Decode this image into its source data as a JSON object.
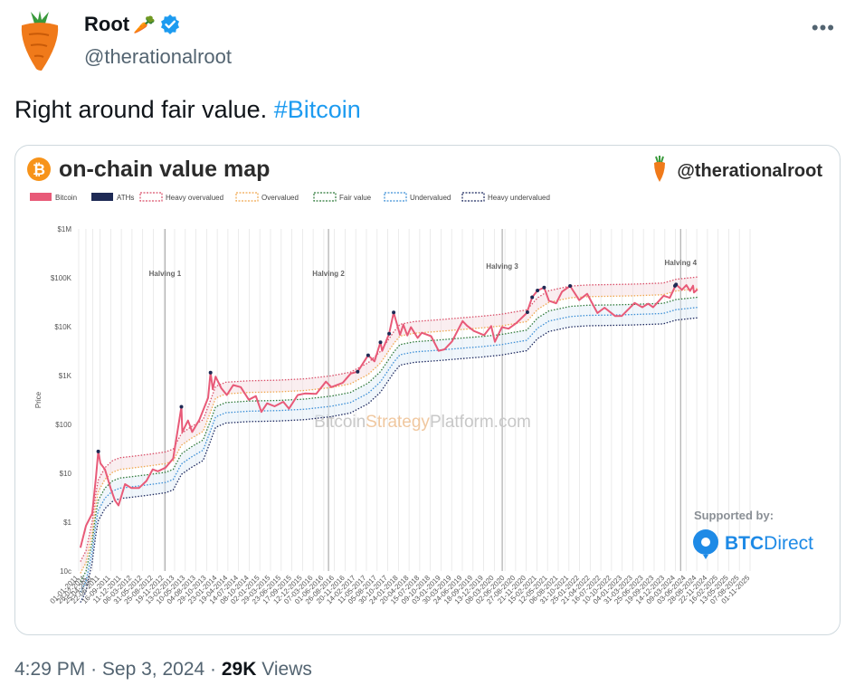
{
  "tweet": {
    "display_name": "Root",
    "name_emoji": "🥕",
    "handle": "@therationalroot",
    "more_label": "•••",
    "text": "Right around fair value.",
    "hashtag": "#Bitcoin",
    "time": "4:29 PM",
    "date": "Sep 3, 2024",
    "views_count": "29K",
    "views_label": "Views",
    "separator": "·"
  },
  "chart_image": {
    "title": "on-chain value map",
    "brand_handle": "@therationalroot",
    "watermark_parts": [
      "Bitcoin",
      "Strategy",
      "Platform.com"
    ],
    "supported_by": "Supported by:",
    "sponsor_bold": "BTC",
    "sponsor_light": "Direct",
    "colors": {
      "bitcoin": "#e85a78",
      "aths": "#1e2a55",
      "heavy_overvalued": "#d9506a",
      "overvalued": "#f0a850",
      "fair_value": "#2f7a3a",
      "undervalued": "#3c8fd6",
      "heavy_undervalued": "#1e2a60",
      "btc_orange": "#f7931a",
      "btcdirect_blue": "#1e8ae6"
    }
  },
  "chart_data": {
    "type": "line",
    "title": "on-chain value map",
    "ylabel": "Price",
    "y_scale": "log",
    "ylim": [
      0.1,
      1000000
    ],
    "y_ticks": [
      {
        "v": 1000000,
        "label": "$1M"
      },
      {
        "v": 100000,
        "label": "$100K"
      },
      {
        "v": 10000,
        "label": "$10K"
      },
      {
        "v": 1000,
        "label": "$1K"
      },
      {
        "v": 100,
        "label": "$100"
      },
      {
        "v": 10,
        "label": "$10"
      },
      {
        "v": 1,
        "label": "$1"
      },
      {
        "v": 0.1,
        "label": "10c"
      }
    ],
    "x_start": "2011-01-01",
    "x_end": "2025-11-01",
    "x_ticks": [
      "01-01-2011",
      "28-02-2011",
      "25-04-2011",
      "22-06-2011",
      "16-09-2011",
      "11-12-2011",
      "06-03-2012",
      "31-05-2012",
      "25-08-2012",
      "19-11-2012",
      "13-02-2013",
      "10-05-2013",
      "04-08-2013",
      "29-10-2013",
      "23-01-2014",
      "19-04-2014",
      "14-07-2014",
      "08-10-2014",
      "02-01-2015",
      "29-03-2015",
      "23-06-2015",
      "17-09-2015",
      "12-12-2015",
      "07-03-2016",
      "01-06-2016",
      "26-08-2016",
      "20-11-2016",
      "14-02-2017",
      "11-05-2017",
      "05-08-2017",
      "30-10-2017",
      "24-01-2018",
      "20-04-2018",
      "15-07-2018",
      "09-10-2018",
      "03-01-2019",
      "30-03-2019",
      "24-06-2019",
      "18-09-2019",
      "13-12-2019",
      "08-03-2020",
      "02-06-2020",
      "27-08-2020",
      "21-11-2020",
      "15-02-2021",
      "12-05-2021",
      "06-08-2021",
      "31-10-2021",
      "25-01-2022",
      "21-04-2022",
      "16-07-2022",
      "10-10-2022",
      "04-01-2023",
      "31-03-2023",
      "25-06-2023",
      "19-09-2023",
      "14-12-2023",
      "09-03-2024",
      "03-06-2024",
      "28-08-2024",
      "22-11-2024",
      "16-02-2025",
      "13-05-2025",
      "07-08-2025",
      "01-11-2025"
    ],
    "legend_placement": "top-left",
    "legend": [
      "Bitcoin",
      "ATHs",
      "Heavy overvalued",
      "Overvalued",
      "Fair value",
      "Undervalued",
      "Heavy undervalued"
    ],
    "annotations": [
      {
        "label": "Halving 1",
        "date": "2012-11-28"
      },
      {
        "label": "Halving 2",
        "date": "2016-07-09"
      },
      {
        "label": "Halving 3",
        "date": "2020-05-11"
      },
      {
        "label": "Halving 4",
        "date": "2024-04-20"
      }
    ],
    "price_series": {
      "name": "Bitcoin",
      "points": [
        [
          "2011-01-15",
          0.3
        ],
        [
          "2011-03-01",
          0.85
        ],
        [
          "2011-04-20",
          1.5
        ],
        [
          "2011-05-20",
          8
        ],
        [
          "2011-06-08",
          28
        ],
        [
          "2011-06-25",
          16
        ],
        [
          "2011-08-01",
          12
        ],
        [
          "2011-09-15",
          5
        ],
        [
          "2011-10-20",
          2.8
        ],
        [
          "2011-11-18",
          2.2
        ],
        [
          "2012-01-10",
          6
        ],
        [
          "2012-03-01",
          5
        ],
        [
          "2012-05-01",
          5
        ],
        [
          "2012-07-01",
          7
        ],
        [
          "2012-08-20",
          12
        ],
        [
          "2012-10-01",
          11
        ],
        [
          "2012-12-01",
          13
        ],
        [
          "2013-02-01",
          20
        ],
        [
          "2013-04-09",
          230
        ],
        [
          "2013-04-16",
          70
        ],
        [
          "2013-06-01",
          120
        ],
        [
          "2013-07-05",
          70
        ],
        [
          "2013-09-01",
          125
        ],
        [
          "2013-11-10",
          350
        ],
        [
          "2013-11-30",
          1150
        ],
        [
          "2013-12-18",
          520
        ],
        [
          "2014-01-10",
          950
        ],
        [
          "2014-02-25",
          550
        ],
        [
          "2014-04-10",
          400
        ],
        [
          "2014-06-01",
          640
        ],
        [
          "2014-08-01",
          580
        ],
        [
          "2014-10-05",
          320
        ],
        [
          "2014-12-01",
          380
        ],
        [
          "2015-01-14",
          180
        ],
        [
          "2015-03-01",
          270
        ],
        [
          "2015-05-01",
          235
        ],
        [
          "2015-07-10",
          290
        ],
        [
          "2015-08-25",
          210
        ],
        [
          "2015-11-04",
          400
        ],
        [
          "2016-01-01",
          430
        ],
        [
          "2016-04-01",
          420
        ],
        [
          "2016-06-18",
          750
        ],
        [
          "2016-08-01",
          580
        ],
        [
          "2016-11-01",
          710
        ],
        [
          "2017-01-04",
          1100
        ],
        [
          "2017-03-01",
          1200
        ],
        [
          "2017-05-25",
          2600
        ],
        [
          "2017-07-15",
          1950
        ],
        [
          "2017-09-01",
          4800
        ],
        [
          "2017-09-15",
          3200
        ],
        [
          "2017-11-10",
          7200
        ],
        [
          "2017-12-17",
          19500
        ],
        [
          "2018-02-06",
          6800
        ],
        [
          "2018-03-05",
          11000
        ],
        [
          "2018-04-06",
          6600
        ],
        [
          "2018-05-05",
          9800
        ],
        [
          "2018-06-28",
          5900
        ],
        [
          "2018-08-01",
          7500
        ],
        [
          "2018-10-15",
          6400
        ],
        [
          "2018-12-15",
          3200
        ],
        [
          "2019-02-01",
          3450
        ],
        [
          "2019-04-02",
          5000
        ],
        [
          "2019-06-26",
          13000
        ],
        [
          "2019-08-01",
          10500
        ],
        [
          "2019-09-25",
          8200
        ],
        [
          "2019-12-17",
          6700
        ],
        [
          "2020-02-12",
          10300
        ],
        [
          "2020-03-13",
          4900
        ],
        [
          "2020-05-08",
          9800
        ],
        [
          "2020-07-01",
          9100
        ],
        [
          "2020-09-01",
          11800
        ],
        [
          "2020-11-25",
          19000
        ],
        [
          "2021-01-08",
          40000
        ],
        [
          "2021-02-20",
          55000
        ],
        [
          "2021-04-14",
          63000
        ],
        [
          "2021-05-23",
          34000
        ],
        [
          "2021-07-20",
          30000
        ],
        [
          "2021-09-06",
          52000
        ],
        [
          "2021-11-10",
          68000
        ],
        [
          "2022-01-22",
          35000
        ],
        [
          "2022-03-28",
          47000
        ],
        [
          "2022-06-18",
          19000
        ],
        [
          "2022-08-15",
          24500
        ],
        [
          "2022-11-09",
          16500
        ],
        [
          "2023-01-01",
          16600
        ],
        [
          "2023-04-14",
          30500
        ],
        [
          "2023-06-15",
          25000
        ],
        [
          "2023-08-01",
          29500
        ],
        [
          "2023-09-11",
          25000
        ],
        [
          "2023-12-05",
          43000
        ],
        [
          "2024-01-23",
          39000
        ],
        [
          "2024-03-14",
          73000
        ],
        [
          "2024-05-01",
          57000
        ],
        [
          "2024-06-05",
          71000
        ],
        [
          "2024-07-05",
          54000
        ],
        [
          "2024-07-29",
          69000
        ],
        [
          "2024-08-05",
          50000
        ],
        [
          "2024-09-03",
          58000
        ]
      ]
    },
    "aths_series": {
      "name": "ATHs",
      "points": [
        [
          "2011-06-08",
          28
        ],
        [
          "2013-04-09",
          230
        ],
        [
          "2013-11-30",
          1150
        ],
        [
          "2017-03-01",
          1200
        ],
        [
          "2017-05-25",
          2600
        ],
        [
          "2017-09-01",
          4800
        ],
        [
          "2017-11-10",
          7200
        ],
        [
          "2017-12-17",
          19500
        ],
        [
          "2020-11-30",
          19800
        ],
        [
          "2021-01-08",
          40000
        ],
        [
          "2021-02-20",
          55000
        ],
        [
          "2021-04-14",
          63000
        ],
        [
          "2021-11-10",
          68000
        ],
        [
          "2024-03-05",
          68500
        ],
        [
          "2024-03-14",
          73000
        ]
      ]
    },
    "band_multipliers": {
      "Heavy overvalued": 2.6,
      "Overvalued": 1.5,
      "Fair value": 1.0,
      "Undervalued": 0.62,
      "Heavy undervalued": 0.38
    },
    "fair_value_points": [
      [
        "2011-01-15",
        0.06
      ],
      [
        "2011-03-01",
        0.1
      ],
      [
        "2011-04-20",
        0.4
      ],
      [
        "2011-05-20",
        1.5
      ],
      [
        "2011-06-08",
        2.8
      ],
      [
        "2011-08-01",
        5
      ],
      [
        "2011-10-01",
        7
      ],
      [
        "2011-12-01",
        8
      ],
      [
        "2012-03-01",
        8.5
      ],
      [
        "2012-08-01",
        9.5
      ],
      [
        "2012-12-01",
        10.5
      ],
      [
        "2013-02-01",
        12
      ],
      [
        "2013-04-09",
        25
      ],
      [
        "2013-07-01",
        35
      ],
      [
        "2013-10-01",
        48
      ],
      [
        "2013-11-30",
        120
      ],
      [
        "2014-01-10",
        230
      ],
      [
        "2014-04-01",
        280
      ],
      [
        "2014-10-01",
        300
      ],
      [
        "2015-06-01",
        310
      ],
      [
        "2016-01-01",
        330
      ],
      [
        "2016-08-01",
        380
      ],
      [
        "2017-01-01",
        450
      ],
      [
        "2017-05-25",
        700
      ],
      [
        "2017-09-01",
        1200
      ],
      [
        "2017-12-17",
        3000
      ],
      [
        "2018-02-06",
        4300
      ],
      [
        "2018-06-01",
        4900
      ],
      [
        "2018-12-01",
        5300
      ],
      [
        "2019-06-01",
        5800
      ],
      [
        "2019-12-01",
        6300
      ],
      [
        "2020-05-01",
        6900
      ],
      [
        "2020-11-25",
        8500
      ],
      [
        "2021-02-20",
        15000
      ],
      [
        "2021-05-23",
        21000
      ],
      [
        "2021-11-10",
        26000
      ],
      [
        "2022-04-01",
        27500
      ],
      [
        "2022-11-01",
        28000
      ],
      [
        "2023-04-01",
        28500
      ],
      [
        "2023-12-01",
        30000
      ],
      [
        "2024-03-14",
        36000
      ],
      [
        "2024-09-03",
        40000
      ]
    ]
  }
}
